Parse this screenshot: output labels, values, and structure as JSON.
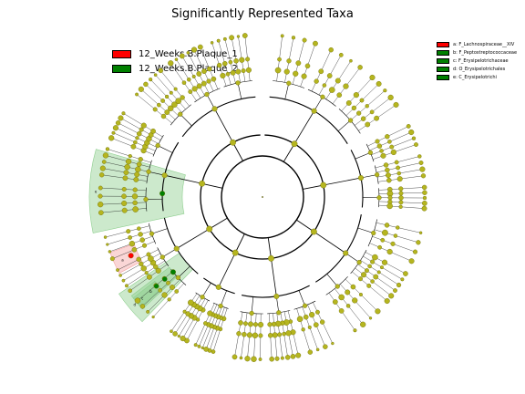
{
  "title": "Significantly Represented Taxa",
  "legend": [
    {
      "label": "12_Weeks.B.Plaque_1",
      "color": "#ff0000"
    },
    {
      "label": "12_Weeks.B.Plaque_2",
      "color": "#008000"
    }
  ],
  "taxa_legend": [
    {
      "label": "a: F_Lachnospiraceae__XIV",
      "color": "#ff0000"
    },
    {
      "label": "b: F_Peptostreptococcaceae",
      "color": "#008000"
    },
    {
      "label": "c: F_Erysipelotrichaceae",
      "color": "#008000"
    },
    {
      "label": "d: O_Erysipelotrichales",
      "color": "#008000"
    },
    {
      "label": "e: C_Erysipelotrichi",
      "color": "#008000"
    }
  ],
  "clade_labels": [
    "a",
    "b",
    "c",
    "d",
    "e"
  ],
  "colors": {
    "node": "#b5b51f",
    "node_edge": "#6b6b00",
    "enriched_1": "#ff0000",
    "enriched_2": "#008000",
    "band_1": "#f4a3a3",
    "band_2": "#8fcf8f"
  }
}
